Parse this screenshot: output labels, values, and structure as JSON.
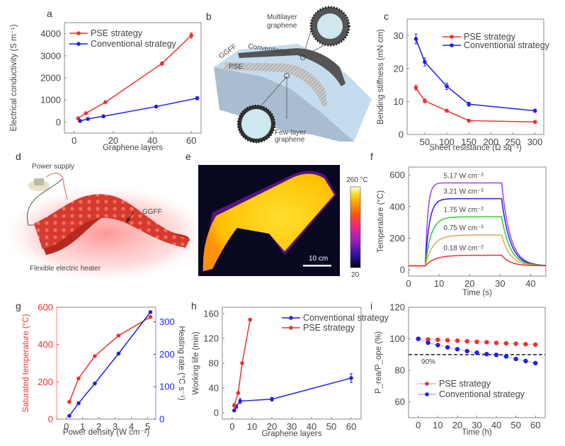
{
  "panels": {
    "a": {
      "label": "a"
    },
    "b": {
      "label": "b",
      "text": {
        "multilayer": [
          "Multilayer",
          "graphene"
        ],
        "conventional": "Conventional",
        "ggff": "GGFF",
        "pse": "PSE",
        "fewlayer": [
          "Few-layer",
          "graphene"
        ]
      }
    },
    "c": {
      "label": "c"
    },
    "d": {
      "label": "d",
      "text": {
        "power": "Power supply",
        "ggff": "GGFF",
        "heater": "Flexible electric heater"
      }
    },
    "e": {
      "label": "e",
      "text": {
        "scale": "10 cm",
        "cbar_max": "260 °C",
        "cbar_min": "20"
      }
    },
    "f": {
      "label": "f"
    },
    "g": {
      "label": "g"
    },
    "h": {
      "label": "h"
    },
    "i": {
      "label": "i"
    }
  },
  "colors": {
    "red": "#f03030",
    "blue": "#2020e8",
    "purple": "#a040f0",
    "green": "#30d030",
    "orange": "#f0a050"
  },
  "chart_data": [
    {
      "id": "a",
      "type": "line",
      "xlabel": "Graphene layers",
      "ylabel": "Electrical conductivity (S m⁻¹)",
      "xlim": [
        -5,
        65
      ],
      "ylim": [
        -500,
        4500
      ],
      "xticks": [
        0,
        20,
        40,
        60
      ],
      "yticks": [
        0,
        1000,
        2000,
        3000,
        4000
      ],
      "legend": "top-left",
      "series": [
        {
          "name": "PSE strategy",
          "color": "red",
          "x": [
            2,
            6,
            16,
            45,
            60
          ],
          "y": [
            170,
            400,
            900,
            2650,
            3920
          ],
          "err": [
            40,
            40,
            50,
            80,
            120
          ]
        },
        {
          "name": "Conventional strategy",
          "color": "blue",
          "x": [
            3,
            7,
            15,
            42,
            63
          ],
          "y": [
            50,
            140,
            260,
            700,
            1080
          ],
          "err": [
            20,
            20,
            30,
            40,
            70
          ]
        }
      ]
    },
    {
      "id": "c",
      "type": "line",
      "xlabel": "Sheet resistance (Ω sq⁻¹)",
      "ylabel": "Bending stiffness (mN cm)",
      "xlim": [
        10,
        320
      ],
      "ylim": [
        0,
        35
      ],
      "xticks": [
        50,
        100,
        150,
        200,
        250,
        300
      ],
      "yticks": [
        0,
        10,
        20,
        30
      ],
      "legend": "top-right",
      "series": [
        {
          "name": "PSE strategy",
          "color": "red",
          "x": [
            30,
            50,
            100,
            150,
            300
          ],
          "y": [
            14.2,
            10.2,
            7.2,
            4.2,
            3.8
          ],
          "err": [
            0.8,
            0.6,
            0.4,
            0.4,
            0.4
          ]
        },
        {
          "name": "Conventional strategy",
          "color": "blue",
          "x": [
            30,
            50,
            100,
            150,
            300
          ],
          "y": [
            29,
            22,
            14.6,
            9.2,
            7.2
          ],
          "err": [
            1.5,
            1.2,
            1.0,
            0.6,
            0.5
          ]
        }
      ]
    },
    {
      "id": "f",
      "type": "line",
      "xlabel": "Time (s)",
      "ylabel": "Temperature (°C)",
      "xlim": [
        0,
        45
      ],
      "ylim": [
        -40,
        650
      ],
      "xticks": [
        0,
        10,
        20,
        30,
        40
      ],
      "yticks": [
        0,
        200,
        400,
        600
      ],
      "series": [
        {
          "name": "5.17 W cm⁻²",
          "color": "purple",
          "plateau": 550
        },
        {
          "name": "3.21 W cm⁻²",
          "color": "blue",
          "plateau": 450
        },
        {
          "name": "1.75 W cm⁻²",
          "color": "green",
          "plateau": 335
        },
        {
          "name": "0.75 W cm⁻²",
          "color": "orange",
          "plateau": 220
        },
        {
          "name": "0.18 W cm⁻²",
          "color": "red",
          "plateau": 92
        }
      ],
      "on_time": 5.5,
      "off_time": 30.5,
      "baseline": 25
    },
    {
      "id": "g",
      "type": "line",
      "xlabel": "Power density (W cm⁻²)",
      "ylabel": "Saturated temperature (°C)",
      "ylabel_right": "Heating rate (°C s⁻¹)",
      "xlim": [
        -0.6,
        5.5
      ],
      "ylim": [
        0,
        600
      ],
      "ylim_right": [
        0,
        345
      ],
      "xticks": [
        0,
        1,
        2,
        3,
        4,
        5
      ],
      "yticks": [
        0,
        200,
        400,
        600
      ],
      "yticks_right": [
        0,
        100,
        200,
        300
      ],
      "series": [
        {
          "name": "Saturated temperature",
          "color": "red",
          "axis": "left",
          "x": [
            0.18,
            0.75,
            1.75,
            3.21,
            5.17
          ],
          "y": [
            92,
            218,
            338,
            448,
            548
          ]
        },
        {
          "name": "Heating rate",
          "color": "blue",
          "axis": "right",
          "x": [
            0.18,
            0.75,
            1.75,
            3.21,
            5.17
          ],
          "y": [
            10,
            49,
            110,
            202,
            330
          ]
        }
      ]
    },
    {
      "id": "h",
      "type": "line",
      "xlabel": "Graphene layers",
      "ylabel": "Working life (min)",
      "xlim": [
        -5,
        65
      ],
      "ylim": [
        -10,
        170
      ],
      "xticks": [
        0,
        10,
        20,
        30,
        40,
        50,
        60
      ],
      "yticks": [
        0,
        40,
        80,
        120,
        160
      ],
      "legend": "top-right",
      "series": [
        {
          "name": "Conventional strategy",
          "color": "blue",
          "x": [
            1,
            2,
            4,
            20,
            60
          ],
          "y": [
            4,
            10,
            19,
            22,
            56
          ],
          "err": [
            1,
            3,
            4,
            3,
            7
          ]
        },
        {
          "name": "PSE strategy",
          "color": "red",
          "x": [
            1,
            3,
            5,
            9
          ],
          "y": [
            12,
            32,
            80,
            150
          ],
          "err": [
            3,
            2,
            2,
            2
          ]
        }
      ]
    },
    {
      "id": "i",
      "type": "scatter",
      "xlabel": "Time (h)",
      "ylabel": "P_rea/P_ope (%)",
      "xlim": [
        -5,
        65
      ],
      "ylim": [
        50,
        120
      ],
      "xticks": [
        0,
        10,
        20,
        30,
        40,
        50,
        60
      ],
      "yticks": [
        60,
        80,
        100,
        120
      ],
      "threshold": {
        "value": 90,
        "label": "90%"
      },
      "legend": "bottom-left",
      "series": [
        {
          "name": "PSE strategy",
          "color": "red",
          "x": [
            0,
            5,
            10,
            15,
            20,
            25,
            30,
            35,
            40,
            45,
            50,
            55,
            60
          ],
          "y": [
            100,
            99.6,
            99.4,
            99.1,
            98.8,
            98.4,
            98.1,
            97.8,
            97.4,
            97.1,
            96.9,
            96.6,
            96.3
          ]
        },
        {
          "name": "Conventional strategy",
          "color": "blue",
          "x": [
            0,
            5,
            10,
            15,
            20,
            25,
            30,
            35,
            40,
            45,
            50,
            55,
            60
          ],
          "y": [
            100,
            97.5,
            96,
            94.6,
            93.4,
            92.2,
            91.2,
            90.3,
            89.8,
            88.8,
            87.2,
            85.9,
            84.6
          ]
        }
      ]
    }
  ]
}
